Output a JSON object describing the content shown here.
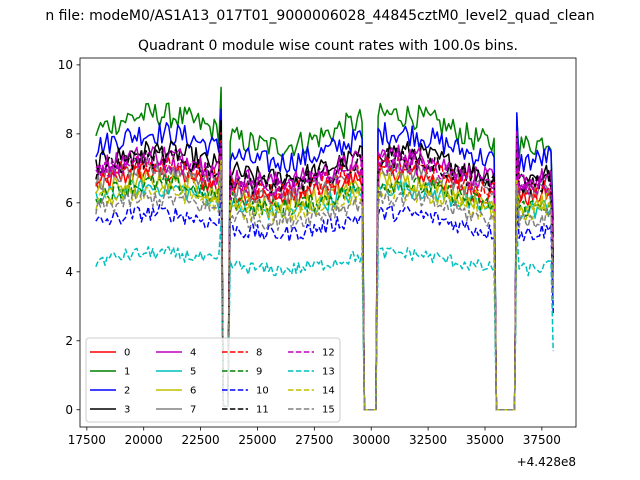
{
  "figure": {
    "suptitle": "n file: modeM0/AS1A13_017T01_9000006028_44845cztM0_level2_quad_clean"
  },
  "chart_data": {
    "type": "line",
    "title": "Quadrant 0 module wise count rates with 100.0s bins.",
    "xlabel": "",
    "ylabel": "",
    "x_offset_label": "+4.428e8",
    "xlim": [
      17200,
      39000
    ],
    "ylim": [
      -0.5,
      10.2
    ],
    "xticks": [
      17500,
      20000,
      22500,
      25000,
      27500,
      30000,
      32500,
      35000,
      37500
    ],
    "xtick_labels": [
      "17500",
      "20000",
      "22500",
      "25000",
      "27500",
      "30000",
      "32500",
      "35000",
      "37500"
    ],
    "yticks": [
      0,
      2,
      4,
      6,
      8,
      10
    ],
    "ytick_labels": [
      "0",
      "2",
      "4",
      "6",
      "8",
      "10"
    ],
    "grid": false,
    "legend": {
      "placement": "lower-left",
      "columns": 4
    },
    "x_sampling": {
      "start": 17900,
      "end": 38000,
      "step": 100
    },
    "gaps": [
      {
        "from": 23450,
        "to": 23750,
        "value": 0.1
      },
      {
        "from": 29700,
        "to": 30200,
        "value": 0.0
      },
      {
        "from": 35500,
        "to": 36300,
        "value": 0.0
      }
    ],
    "series": [
      {
        "name": "0",
        "color": "#ff0000",
        "dash": "solid",
        "mean": 6.5
      },
      {
        "name": "1",
        "color": "#008000",
        "dash": "solid",
        "mean": 8.1
      },
      {
        "name": "2",
        "color": "#0000ff",
        "dash": "solid",
        "mean": 7.6
      },
      {
        "name": "3",
        "color": "#000000",
        "dash": "solid",
        "mean": 7.1
      },
      {
        "name": "4",
        "color": "#bf00bf",
        "dash": "solid",
        "mean": 7.0
      },
      {
        "name": "5",
        "color": "#00bfbf",
        "dash": "solid",
        "mean": 6.1
      },
      {
        "name": "6",
        "color": "#bfbf00",
        "dash": "solid",
        "mean": 6.3
      },
      {
        "name": "7",
        "color": "#808080",
        "dash": "solid",
        "mean": 6.6
      },
      {
        "name": "8",
        "color": "#ff0000",
        "dash": "dashed",
        "mean": 6.7
      },
      {
        "name": "9",
        "color": "#008000",
        "dash": "dashed",
        "mean": 6.2
      },
      {
        "name": "10",
        "color": "#0000ff",
        "dash": "dashed",
        "mean": 5.4
      },
      {
        "name": "11",
        "color": "#000000",
        "dash": "dashed",
        "mean": 6.9
      },
      {
        "name": "12",
        "color": "#bf00bf",
        "dash": "dashed",
        "mean": 6.8
      },
      {
        "name": "13",
        "color": "#00bfbf",
        "dash": "dashed",
        "mean": 4.3
      },
      {
        "name": "14",
        "color": "#bfbf00",
        "dash": "dashed",
        "mean": 6.0
      },
      {
        "name": "15",
        "color": "#808080",
        "dash": "dashed",
        "mean": 5.8
      }
    ]
  }
}
